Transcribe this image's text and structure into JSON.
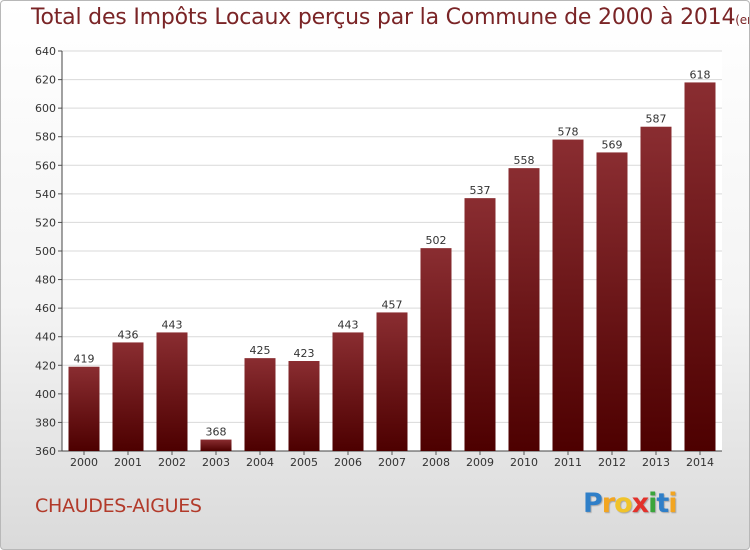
{
  "title": "Total des Impôts Locaux perçus par la Commune de 2000 à 2014",
  "title_unit": "(en milliers d'€)",
  "commune": "CHAUDES-AIGUES",
  "logo": {
    "letters": [
      "P",
      "r",
      "o",
      "x",
      "i",
      "t",
      "i"
    ],
    "colors": [
      "#2f7fc8",
      "#f2a521",
      "#f0c32a",
      "#e2312b",
      "#3aa53c",
      "#2f7fc8",
      "#f2a521"
    ]
  },
  "colors": {
    "bar_top": "#8a2d31",
    "bar_bottom": "#4d0000",
    "title": "#7a2426",
    "commune": "#b23a2a",
    "grid": "#d9d9d9"
  },
  "chart_data": {
    "type": "bar",
    "categories": [
      "2000",
      "2001",
      "2002",
      "2003",
      "2004",
      "2005",
      "2006",
      "2007",
      "2008",
      "2009",
      "2010",
      "2011",
      "2012",
      "2013",
      "2014"
    ],
    "values": [
      419,
      436,
      443,
      368,
      425,
      423,
      443,
      457,
      502,
      537,
      558,
      578,
      569,
      587,
      618
    ],
    "ylim": [
      360,
      640
    ],
    "yticks": [
      360,
      380,
      400,
      420,
      440,
      460,
      480,
      500,
      520,
      540,
      560,
      580,
      600,
      620,
      640
    ],
    "grid": true,
    "data_labels": true
  }
}
